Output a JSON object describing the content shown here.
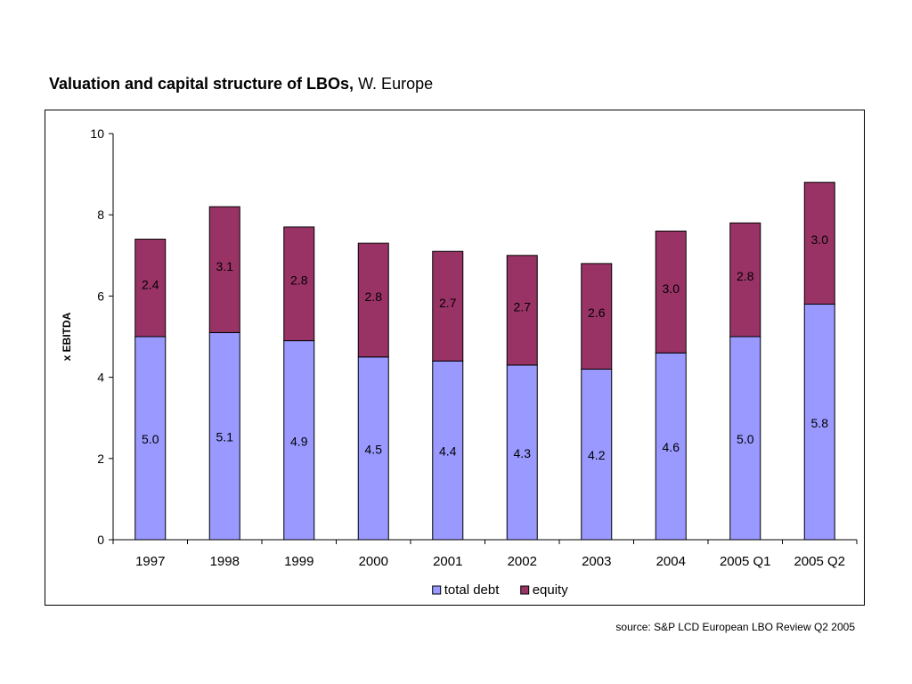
{
  "title": {
    "bold_part": "Valuation and capital structure of LBOs,",
    "regular_part": " W. Europe"
  },
  "source": "source: S&P LCD European LBO Review Q2 2005",
  "colors": {
    "total_debt": "#9999ff",
    "equity": "#993366",
    "axis": "#000000"
  },
  "chart_data": {
    "type": "bar",
    "stacked": true,
    "categories": [
      "1997",
      "1998",
      "1999",
      "2000",
      "2001",
      "2002",
      "2003",
      "2004",
      "2005 Q1",
      "2005 Q2"
    ],
    "series": [
      {
        "name": "total debt",
        "values": [
          5.0,
          5.1,
          4.9,
          4.5,
          4.4,
          4.3,
          4.2,
          4.6,
          5.0,
          5.8
        ]
      },
      {
        "name": "equity",
        "values": [
          2.4,
          3.1,
          2.8,
          2.8,
          2.7,
          2.7,
          2.6,
          3.0,
          2.8,
          3.0
        ]
      }
    ],
    "data_labels": {
      "total debt": [
        "5.0",
        "5.1",
        "4.9",
        "4.5",
        "4.4",
        "4.3",
        "4.2",
        "4.6",
        "5.0",
        "5.8"
      ],
      "equity": [
        "2.4",
        "3.1",
        "2.8",
        "2.8",
        "2.7",
        "2.7",
        "2.6",
        "3.0",
        "2.8",
        "3.0"
      ]
    },
    "ylabel": "x EBITDA",
    "xlabel": "",
    "ylim": [
      0,
      10
    ],
    "yticks": [
      "0",
      "2",
      "4",
      "6",
      "8",
      "10"
    ],
    "grid": false,
    "legend": "bottom"
  }
}
